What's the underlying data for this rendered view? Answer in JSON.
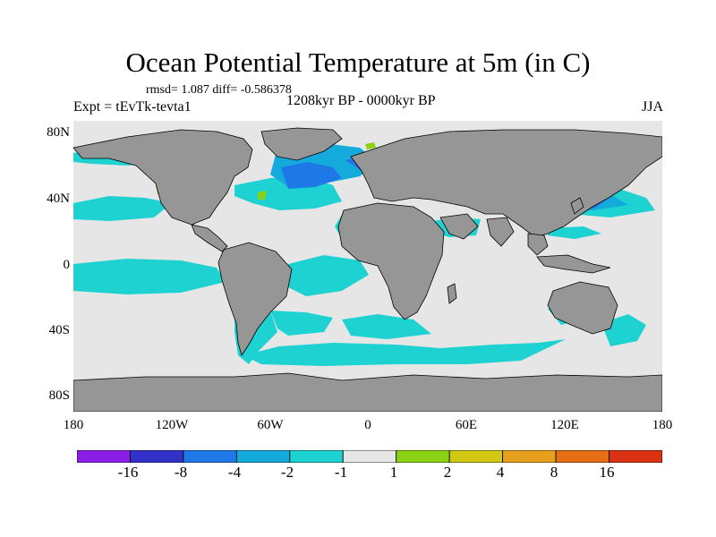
{
  "title": "Ocean Potential Temperature at 5m (in C)",
  "stats": "rmsd= 1.087 diff= -0.586378",
  "experiment": "Expt = tEvTk-tevta1",
  "period": "1208kyr BP - 0000kyr BP",
  "season": "JJA",
  "lat_labels": [
    "80N",
    "40N",
    "0",
    "40S",
    "80S"
  ],
  "lon_labels": [
    "180",
    "120W",
    "60W",
    "0",
    "60E",
    "120E",
    "180"
  ],
  "colorbar": {
    "labels": [
      "-16",
      "-8",
      "-4",
      "-2",
      "-1",
      "1",
      "2",
      "4",
      "8",
      "16"
    ],
    "colors": [
      "#8b1ee6",
      "#3232c8",
      "#1e78e6",
      "#14aadc",
      "#1ed2d2",
      "#e6e6e6",
      "#8cd214",
      "#d2c814",
      "#e6a01e",
      "#e66e14",
      "#dc3214"
    ]
  },
  "colors": {
    "land": "#969696",
    "ocean_neutral": "#e6e6e6",
    "anomaly_minus1_minus2": "#1ed2d2",
    "anomaly_minus2_minus4": "#14aadc",
    "anomaly_minus4_minus8": "#1e78e6",
    "anomaly_1_2": "#8cd214"
  }
}
